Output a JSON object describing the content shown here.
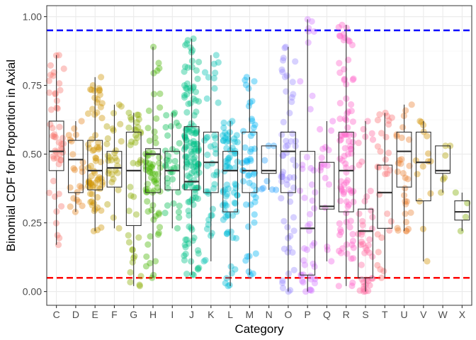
{
  "chart_data": {
    "type": "box-jitter",
    "title": "",
    "xlabel": "Category",
    "ylabel": "Binomial CDF for Proportion in Axial",
    "ylim": [
      -0.05,
      1.04
    ],
    "yticks": [
      0.0,
      0.25,
      0.5,
      0.75,
      1.0
    ],
    "ytick_labels": [
      "0.00",
      "0.25",
      "0.50",
      "0.75",
      "1.00"
    ],
    "grid": true,
    "legend": "none",
    "reference_lines": [
      {
        "value": 0.95,
        "color": "#0000ff",
        "style": "dashed"
      },
      {
        "value": 0.05,
        "color": "#ff0000",
        "style": "dashed"
      }
    ],
    "categories": [
      "C",
      "D",
      "E",
      "F",
      "G",
      "H",
      "I",
      "J",
      "K",
      "L",
      "M",
      "N",
      "O",
      "P",
      "Q",
      "R",
      "S",
      "T",
      "U",
      "V",
      "W",
      "X"
    ],
    "colors": [
      "#F8766D",
      "#E7851E",
      "#D09400",
      "#B2A100",
      "#89AC00",
      "#45B500",
      "#00BC51",
      "#00C087",
      "#00C0B2",
      "#00BCD6",
      "#00B3F2",
      "#29A3FF",
      "#9C8DFF",
      "#D277FF",
      "#F166E8",
      "#FF61C7",
      "#FF68A1",
      "#FA7376",
      "#EB8335",
      "#D39200",
      "#B0A100",
      "#7FAD00"
    ],
    "boxes": [
      {
        "q1": 0.44,
        "median": 0.51,
        "q3": 0.62,
        "lower": 0.17,
        "upper": 0.86
      },
      {
        "q1": 0.36,
        "median": 0.48,
        "q3": 0.55,
        "lower": 0.29,
        "upper": 0.62
      },
      {
        "q1": 0.37,
        "median": 0.44,
        "q3": 0.55,
        "lower": 0.22,
        "upper": 0.78
      },
      {
        "q1": 0.38,
        "median": 0.45,
        "q3": 0.51,
        "lower": 0.23,
        "upper": 0.68
      },
      {
        "q1": 0.24,
        "median": 0.44,
        "q3": 0.58,
        "lower": 0.02,
        "upper": 0.65
      },
      {
        "q1": 0.36,
        "median": 0.5,
        "q3": 0.52,
        "lower": 0.05,
        "upper": 0.89
      },
      {
        "q1": 0.37,
        "median": 0.44,
        "q3": 0.51,
        "lower": 0.23,
        "upper": 0.65
      },
      {
        "q1": 0.37,
        "median": 0.4,
        "q3": 0.6,
        "lower": 0.06,
        "upper": 0.92
      },
      {
        "q1": 0.36,
        "median": 0.47,
        "q3": 0.58,
        "lower": 0.11,
        "upper": 0.86
      },
      {
        "q1": 0.29,
        "median": 0.44,
        "q3": 0.51,
        "lower": 0.02,
        "upper": 0.62
      },
      {
        "q1": 0.36,
        "median": 0.44,
        "q3": 0.58,
        "lower": 0.06,
        "upper": 0.78
      },
      {
        "q1": 0.43,
        "median": 0.44,
        "q3": 0.53,
        "lower": 0.37,
        "upper": 0.53
      },
      {
        "q1": 0.36,
        "median": 0.51,
        "q3": 0.58,
        "lower": 0.0,
        "upper": 0.89
      },
      {
        "q1": 0.06,
        "median": 0.23,
        "q3": 0.51,
        "lower": 0.0,
        "upper": 0.99
      },
      {
        "q1": 0.3,
        "median": 0.31,
        "q3": 0.47,
        "lower": 0.11,
        "upper": 0.62
      },
      {
        "q1": 0.29,
        "median": 0.44,
        "q3": 0.58,
        "lower": 0.02,
        "upper": 0.97
      },
      {
        "q1": 0.05,
        "median": 0.22,
        "q3": 0.3,
        "lower": 0.0,
        "upper": 0.62
      },
      {
        "q1": 0.23,
        "median": 0.36,
        "q3": 0.46,
        "lower": 0.05,
        "upper": 0.65
      },
      {
        "q1": 0.38,
        "median": 0.51,
        "q3": 0.58,
        "lower": 0.22,
        "upper": 0.68
      },
      {
        "q1": 0.33,
        "median": 0.47,
        "q3": 0.58,
        "lower": 0.11,
        "upper": 0.62
      },
      {
        "q1": 0.43,
        "median": 0.44,
        "q3": 0.53,
        "lower": 0.36,
        "upper": 0.53
      },
      {
        "q1": 0.26,
        "median": 0.29,
        "q3": 0.33,
        "lower": 0.22,
        "upper": 0.36
      }
    ],
    "point_counts": [
      50,
      22,
      70,
      30,
      40,
      70,
      35,
      140,
      40,
      75,
      50,
      8,
      60,
      45,
      18,
      95,
      45,
      30,
      30,
      15,
      6,
      4
    ]
  }
}
